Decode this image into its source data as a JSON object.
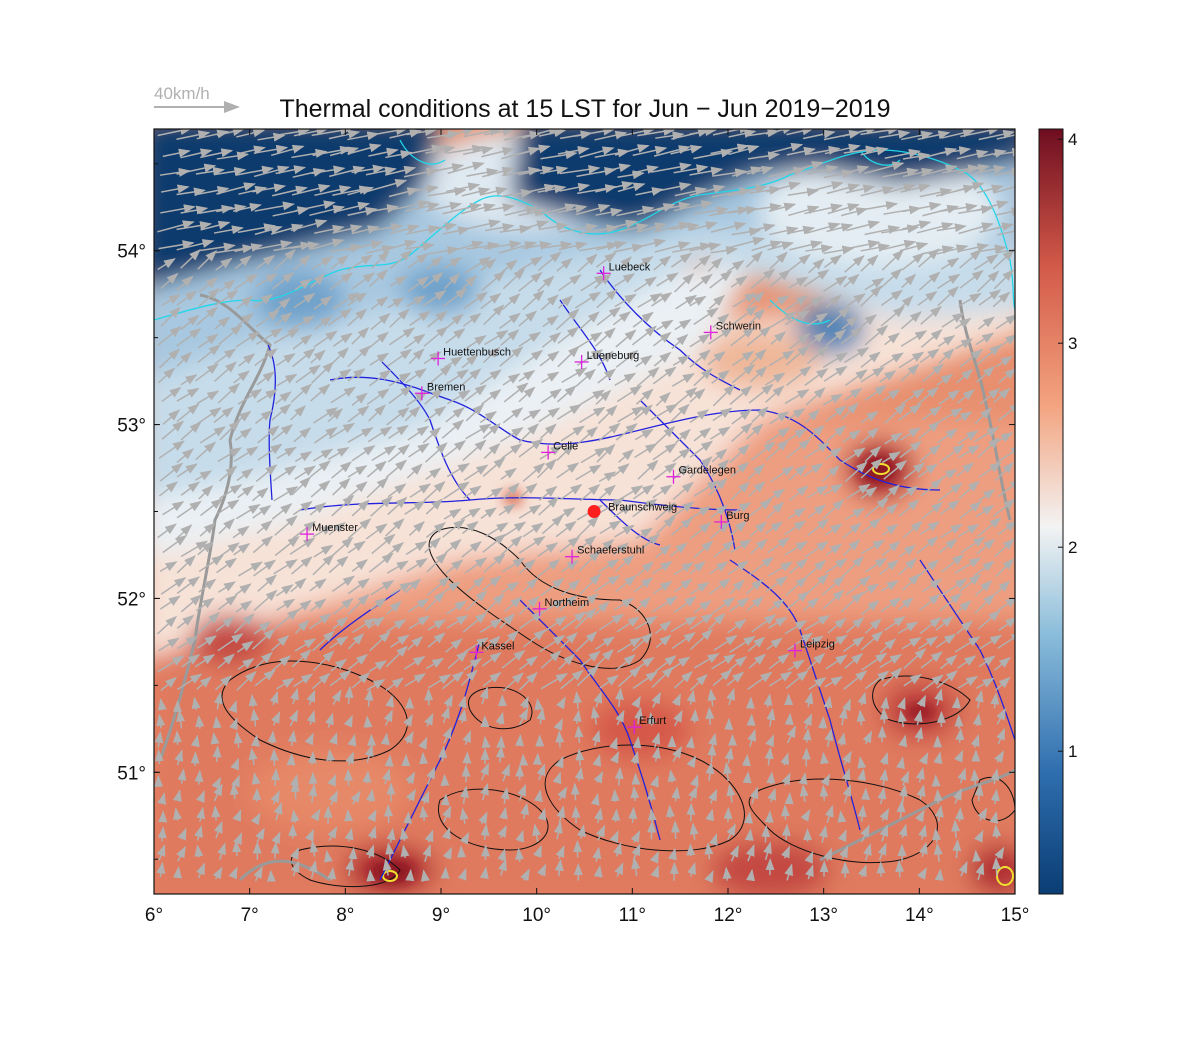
{
  "map": {
    "title": "Thermal conditions at 15 LST for Jun − Jun  2019−2019",
    "wind_scale_label": "40km/h",
    "lon_ticks": [
      "6°",
      "7°",
      "8°",
      "9°",
      "10°",
      "11°",
      "12°",
      "13°",
      "14°",
      "15°"
    ],
    "lat_ticks": [
      "54°",
      "53°",
      "52°",
      "51°"
    ],
    "colorbar": {
      "ticks": [
        "4",
        "3",
        "2",
        "1"
      ],
      "range": [
        0.3,
        4.05
      ],
      "colors": [
        "#0a3d74",
        "#2f6eaf",
        "#8bbddb",
        "#f3f3f3",
        "#f3a37f",
        "#d35a49",
        "#6e0d20"
      ]
    },
    "extent": {
      "lon": [
        6,
        15
      ],
      "lat": [
        50.3,
        54.7
      ]
    },
    "highlight_station": {
      "name": "Braunschweig",
      "lon": 10.6,
      "lat": 52.5,
      "color": "#ff1f1f"
    },
    "cities": [
      {
        "name": "Luebeck",
        "lon": 10.7,
        "lat": 53.87
      },
      {
        "name": "Schwerin",
        "lon": 11.82,
        "lat": 53.53
      },
      {
        "name": "Huettenbusch",
        "lon": 8.97,
        "lat": 53.38
      },
      {
        "name": "Lueneburg",
        "lon": 10.47,
        "lat": 53.36
      },
      {
        "name": "Bremen",
        "lon": 8.8,
        "lat": 53.18
      },
      {
        "name": "Celle",
        "lon": 10.12,
        "lat": 52.84
      },
      {
        "name": "Gardelegen",
        "lon": 11.43,
        "lat": 52.7
      },
      {
        "name": "Burg",
        "lon": 11.93,
        "lat": 52.44
      },
      {
        "name": "Muenster",
        "lon": 7.6,
        "lat": 52.37
      },
      {
        "name": "Schaeferstuhl",
        "lon": 10.37,
        "lat": 52.24
      },
      {
        "name": "Northeim",
        "lon": 10.03,
        "lat": 51.94
      },
      {
        "name": "Kassel",
        "lon": 9.37,
        "lat": 51.69
      },
      {
        "name": "Leipzig",
        "lon": 12.7,
        "lat": 51.7
      },
      {
        "name": "Erfurt",
        "lon": 11.02,
        "lat": 51.26
      }
    ],
    "legend_colors": {
      "coastline": "#22d6e8",
      "rivers": "#2222dd",
      "terrain_contours": "#111111",
      "borders": "#9a9a9a",
      "wind_vectors": "#b0b0b0",
      "max_contour": "#f0e030",
      "city_marker": "#dd22dd"
    }
  }
}
